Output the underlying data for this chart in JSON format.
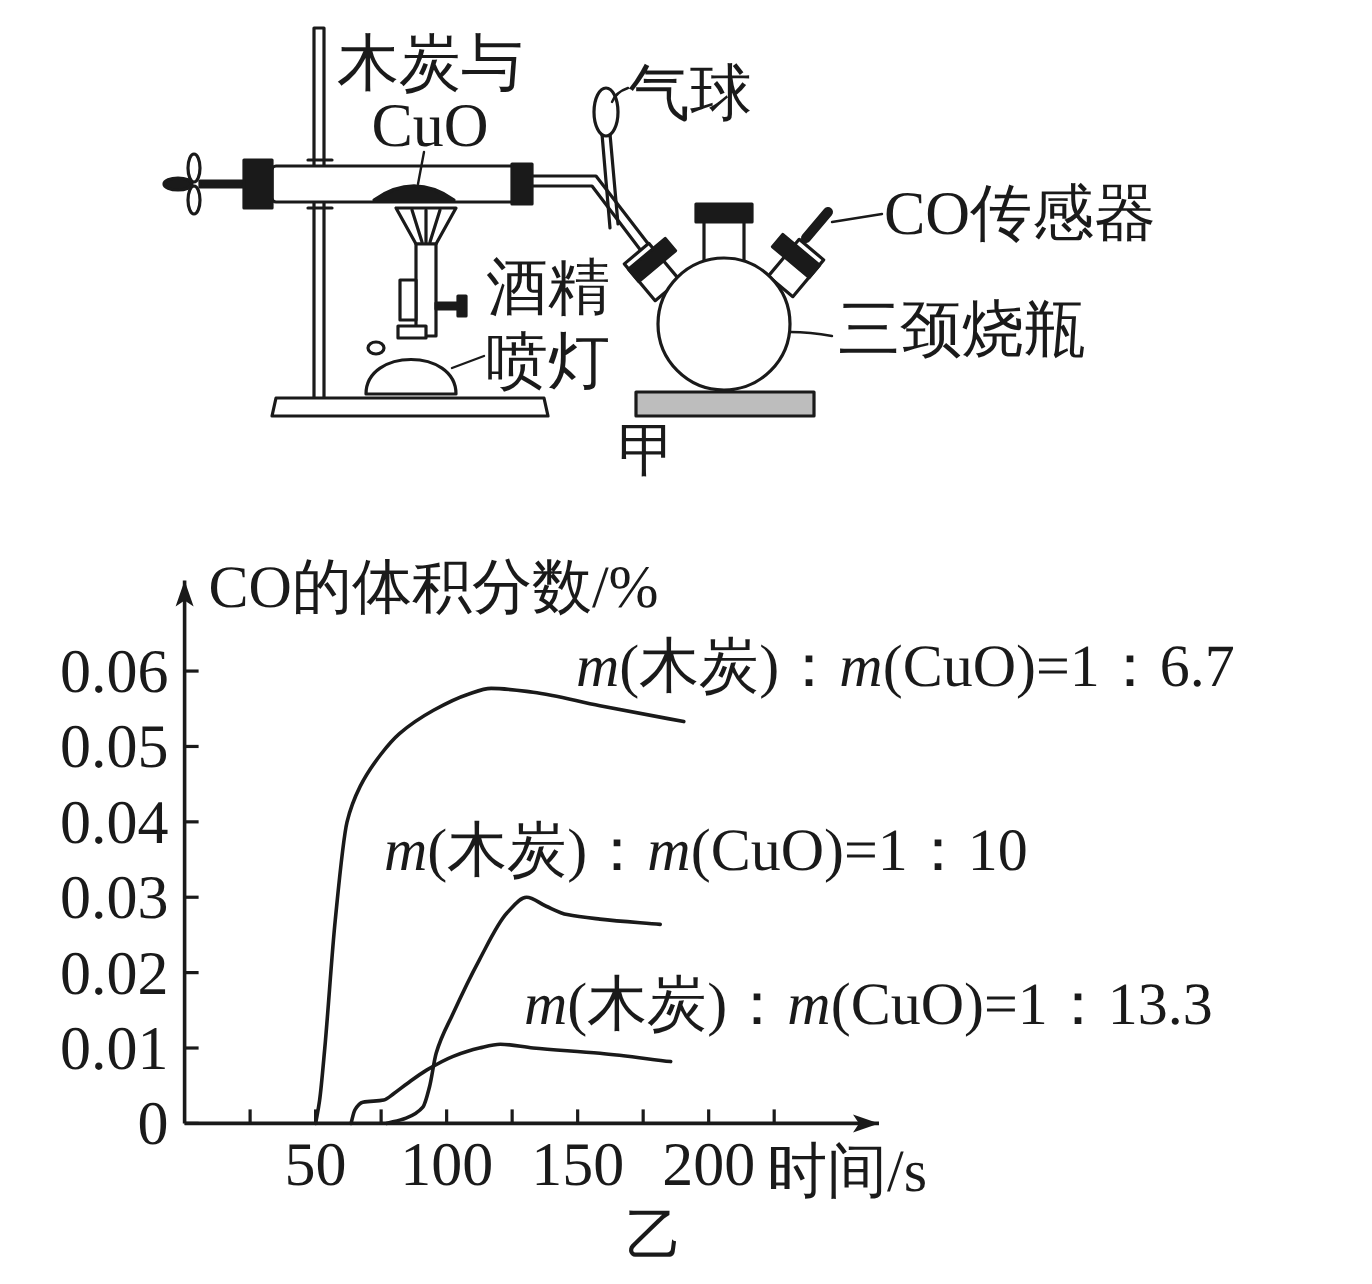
{
  "chart_data": {
    "type": "line",
    "xlabel": "时间/s",
    "ylabel": "CO的体积分数/%",
    "xlim": [
      0,
      265
    ],
    "ylim": [
      0,
      0.072
    ],
    "xticks": [
      {
        "value": 25,
        "label": null
      },
      50,
      {
        "value": 75,
        "label": null
      },
      100,
      {
        "value": 125,
        "label": null
      },
      150,
      {
        "value": 175,
        "label": null
      },
      200,
      {
        "value": 225,
        "label": null
      }
    ],
    "yticks": [
      0,
      0.01,
      0.02,
      0.03,
      0.04,
      0.05,
      0.06
    ],
    "line_style": "solid",
    "series": [
      {
        "name": "*m*(木炭)：*m*(CuO)=1：6.7",
        "color": "#1a1a1a",
        "x": [
          50,
          51.5,
          53.5,
          57.5,
          62,
          67,
          75,
          82,
          95,
          108,
          117,
          133,
          158.5,
          190.5
        ],
        "values": [
          0,
          0.003,
          0.01,
          0.027,
          0.04,
          0.0447,
          0.049,
          0.0517,
          0.0548,
          0.0569,
          0.0577,
          0.0572,
          0.0554,
          0.0533
        ]
      },
      {
        "name": "*m*(木炭)：*m*(CuO)=1：10",
        "color": "#1a1a1a",
        "x": [
          77,
          84.5,
          91,
          93.5,
          96,
          102.5,
          112.5,
          123,
          130.5,
          138,
          146,
          158.5,
          181.5
        ],
        "values": [
          0,
          0.0007,
          0.0022,
          0.0049,
          0.0093,
          0.0146,
          0.0217,
          0.0279,
          0.03,
          0.0288,
          0.0277,
          0.0271,
          0.0264
        ]
      },
      {
        "name": "*m*(木炭)：*m*(CuO)=1：13.3",
        "color": "#1a1a1a",
        "x": [
          63.5,
          65,
          68,
          76,
          80,
          85,
          92.5,
          102.5,
          112.5,
          120.5,
          133,
          158.5,
          185.5
        ],
        "values": [
          0,
          0.0018,
          0.0028,
          0.0031,
          0.004,
          0.0053,
          0.0071,
          0.0089,
          0.01,
          0.0105,
          0.01,
          0.0093,
          0.0082
        ]
      }
    ],
    "annotations": [
      "木炭与CuO",
      "气球",
      "CO传感器",
      "酒精喷灯",
      "三颈烧瓶",
      "甲",
      "乙"
    ]
  }
}
